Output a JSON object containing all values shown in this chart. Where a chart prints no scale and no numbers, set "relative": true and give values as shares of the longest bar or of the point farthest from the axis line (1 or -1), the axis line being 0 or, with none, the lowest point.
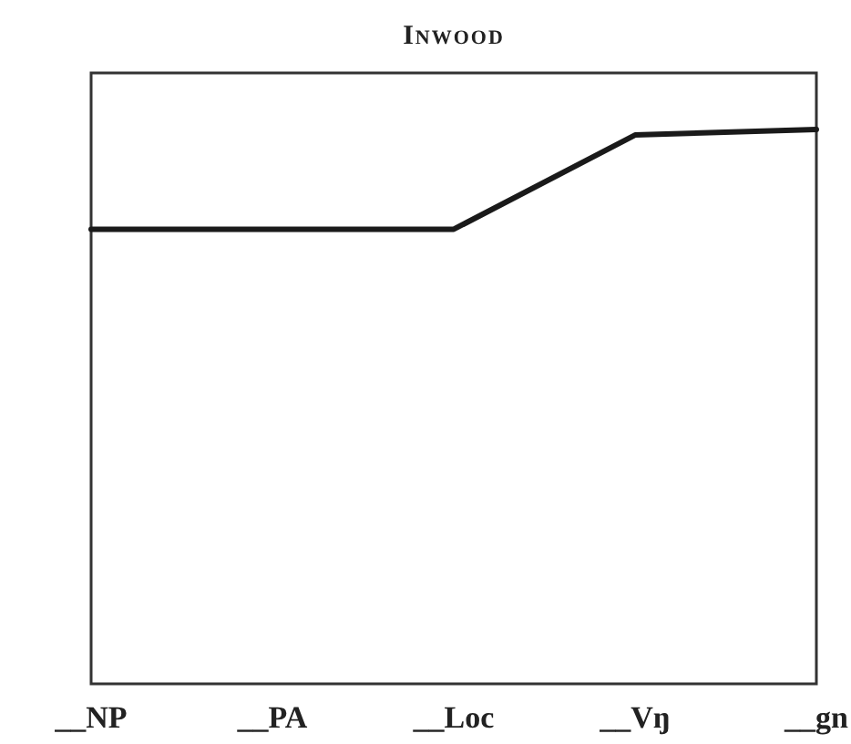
{
  "chart_data": {
    "type": "line",
    "title": "Inwood",
    "relative": true,
    "categories": [
      "__NP",
      "__PA",
      "__Loc",
      "__Vŋ",
      "__gn"
    ],
    "series": [
      {
        "color": "#1a1a1a",
        "values": [
          0.82,
          0.82,
          0.82,
          0.99,
          1
        ]
      }
    ],
    "marker": "none",
    "line_style": "solid"
  }
}
